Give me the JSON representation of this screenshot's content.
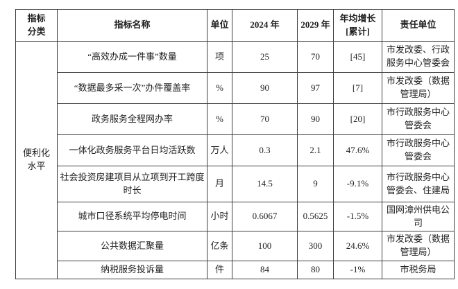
{
  "table": {
    "headers": {
      "category_line1": "指标",
      "category_line2": "分类",
      "name": "指标名称",
      "unit": "单位",
      "y2024": "2024 年",
      "y2029": "2029 年",
      "growth_line1": "年均增长",
      "growth_line2": "[累计]",
      "owner": "责任单位"
    },
    "category": {
      "line1": "便利化",
      "line2": "水平"
    },
    "rows": [
      {
        "name": "“高效办成一件事”数量",
        "unit": "项",
        "y2024": "25",
        "y2029": "70",
        "growth": "[45]",
        "owner": "市发改委、行政服务中心管委会"
      },
      {
        "name": "“数据最多采一次”办件覆盖率",
        "unit": "%",
        "y2024": "90",
        "y2029": "97",
        "growth": "[7]",
        "owner": "市发改委（数据管理局）"
      },
      {
        "name": "政务服务全程网办率",
        "unit": "%",
        "y2024": "70",
        "y2029": "90",
        "growth": "[20]",
        "owner": "市行政服务中心管委会"
      },
      {
        "name": "一体化政务服务平台日均活跃数",
        "unit": "万人",
        "y2024": "0.3",
        "y2029": "2.1",
        "growth": "47.6%",
        "owner": "市行政服务中心管委会"
      },
      {
        "name": "社会投资房建项目从立项到开工跨度时长",
        "unit": "月",
        "y2024": "14.5",
        "y2029": "9",
        "growth": "-9.1%",
        "owner": "市行政服务中心管委会、住建局"
      },
      {
        "name": "城市口径系统平均停电时间",
        "unit": "小时",
        "y2024": "0.6067",
        "y2029": "0.5625",
        "growth": "-1.5%",
        "owner": "国网漳州供电公司"
      },
      {
        "name": "公共数据汇聚量",
        "unit": "亿条",
        "y2024": "100",
        "y2029": "300",
        "growth": "24.6%",
        "owner": "市发改委（数据管理局）"
      },
      {
        "name": "纳税服务投诉量",
        "unit": "件",
        "y2024": "84",
        "y2029": "80",
        "growth": "-1%",
        "owner": "市税务局"
      }
    ]
  }
}
